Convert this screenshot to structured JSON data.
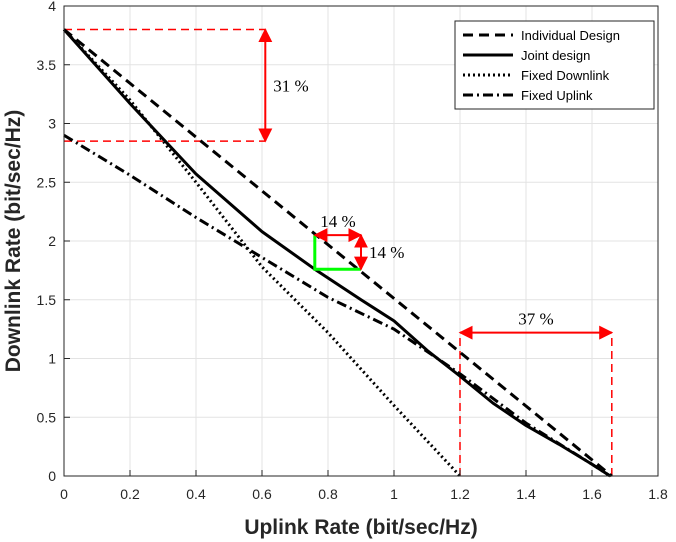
{
  "chart_data": {
    "type": "line",
    "title": "",
    "xlabel": "Uplink Rate (bit/sec/Hz)",
    "ylabel": "Downlink Rate (bit/sec/Hz)",
    "xlim": [
      0,
      1.8
    ],
    "ylim": [
      0,
      4
    ],
    "xticks": [
      "0",
      "0.2",
      "0.4",
      "0.6",
      "0.8",
      "1",
      "1.2",
      "1.4",
      "1.6",
      "1.8"
    ],
    "yticks": [
      "0",
      "0.5",
      "1",
      "1.5",
      "2",
      "2.5",
      "3",
      "3.5",
      "4"
    ],
    "grid": true,
    "legend_position": "top-right",
    "series": [
      {
        "name": "Individual Design",
        "style": "dashed",
        "color": "#000000",
        "points": [
          [
            0,
            3.8
          ],
          [
            1.66,
            0
          ]
        ]
      },
      {
        "name": "Joint design",
        "style": "solid",
        "color": "#000000",
        "points": [
          [
            0,
            3.8
          ],
          [
            0.2,
            3.17
          ],
          [
            0.4,
            2.57
          ],
          [
            0.6,
            2.08
          ],
          [
            0.76,
            1.76
          ],
          [
            0.9,
            1.5
          ],
          [
            1.0,
            1.32
          ],
          [
            1.1,
            1.07
          ],
          [
            1.2,
            0.85
          ],
          [
            1.3,
            0.62
          ],
          [
            1.4,
            0.43
          ],
          [
            1.5,
            0.27
          ],
          [
            1.6,
            0.1
          ],
          [
            1.655,
            0
          ]
        ]
      },
      {
        "name": "Fixed Downlink",
        "style": "dotted",
        "color": "#000000",
        "points": [
          [
            0,
            3.8
          ],
          [
            0.2,
            3.2
          ],
          [
            0.4,
            2.5
          ],
          [
            0.6,
            1.78
          ],
          [
            0.8,
            1.22
          ],
          [
            1.0,
            0.6
          ],
          [
            1.2,
            0
          ]
        ]
      },
      {
        "name": "Fixed Uplink",
        "style": "dashdot",
        "color": "#000000",
        "points": [
          [
            0,
            2.9
          ],
          [
            0.2,
            2.56
          ],
          [
            0.4,
            2.2
          ],
          [
            0.6,
            1.86
          ],
          [
            0.8,
            1.52
          ],
          [
            1.0,
            1.25
          ],
          [
            1.2,
            0.87
          ],
          [
            1.4,
            0.45
          ],
          [
            1.6,
            0.1
          ],
          [
            1.655,
            0
          ]
        ]
      }
    ],
    "annotations": [
      {
        "label": "31 %",
        "kind": "vertical-arrow",
        "x": 0.61,
        "y_from": 2.85,
        "y_to": 3.8,
        "color": "#ff0000"
      },
      {
        "label": "14 %",
        "kind": "horizontal-arrow",
        "y": 2.05,
        "x_from": 0.76,
        "x_to": 0.9,
        "color": "#ff0000"
      },
      {
        "label": "14 %",
        "kind": "vertical-arrow",
        "x": 0.9,
        "y_from": 1.76,
        "y_to": 2.05,
        "color": "#ff0000"
      },
      {
        "label": "37 %",
        "kind": "horizontal-arrow",
        "y": 1.22,
        "x_from": 1.2,
        "x_to": 1.66,
        "color": "#ff0000"
      }
    ],
    "guides": [
      {
        "kind": "h-dashed",
        "y": 3.8,
        "x_from": 0,
        "x_to": 0.61,
        "color": "#ff0000"
      },
      {
        "kind": "h-dashed",
        "y": 2.85,
        "x_from": 0,
        "x_to": 0.61,
        "color": "#ff0000"
      },
      {
        "kind": "v-dashed",
        "x": 1.2,
        "y_from": 0,
        "y_to": 1.22,
        "color": "#ff0000"
      },
      {
        "kind": "v-dashed",
        "x": 1.66,
        "y_from": 0,
        "y_to": 1.22,
        "color": "#ff0000"
      }
    ],
    "highlight": {
      "kind": "corner",
      "color": "#00ff00",
      "points": [
        [
          0.76,
          2.05
        ],
        [
          0.76,
          1.76
        ],
        [
          0.9,
          1.76
        ]
      ]
    }
  }
}
